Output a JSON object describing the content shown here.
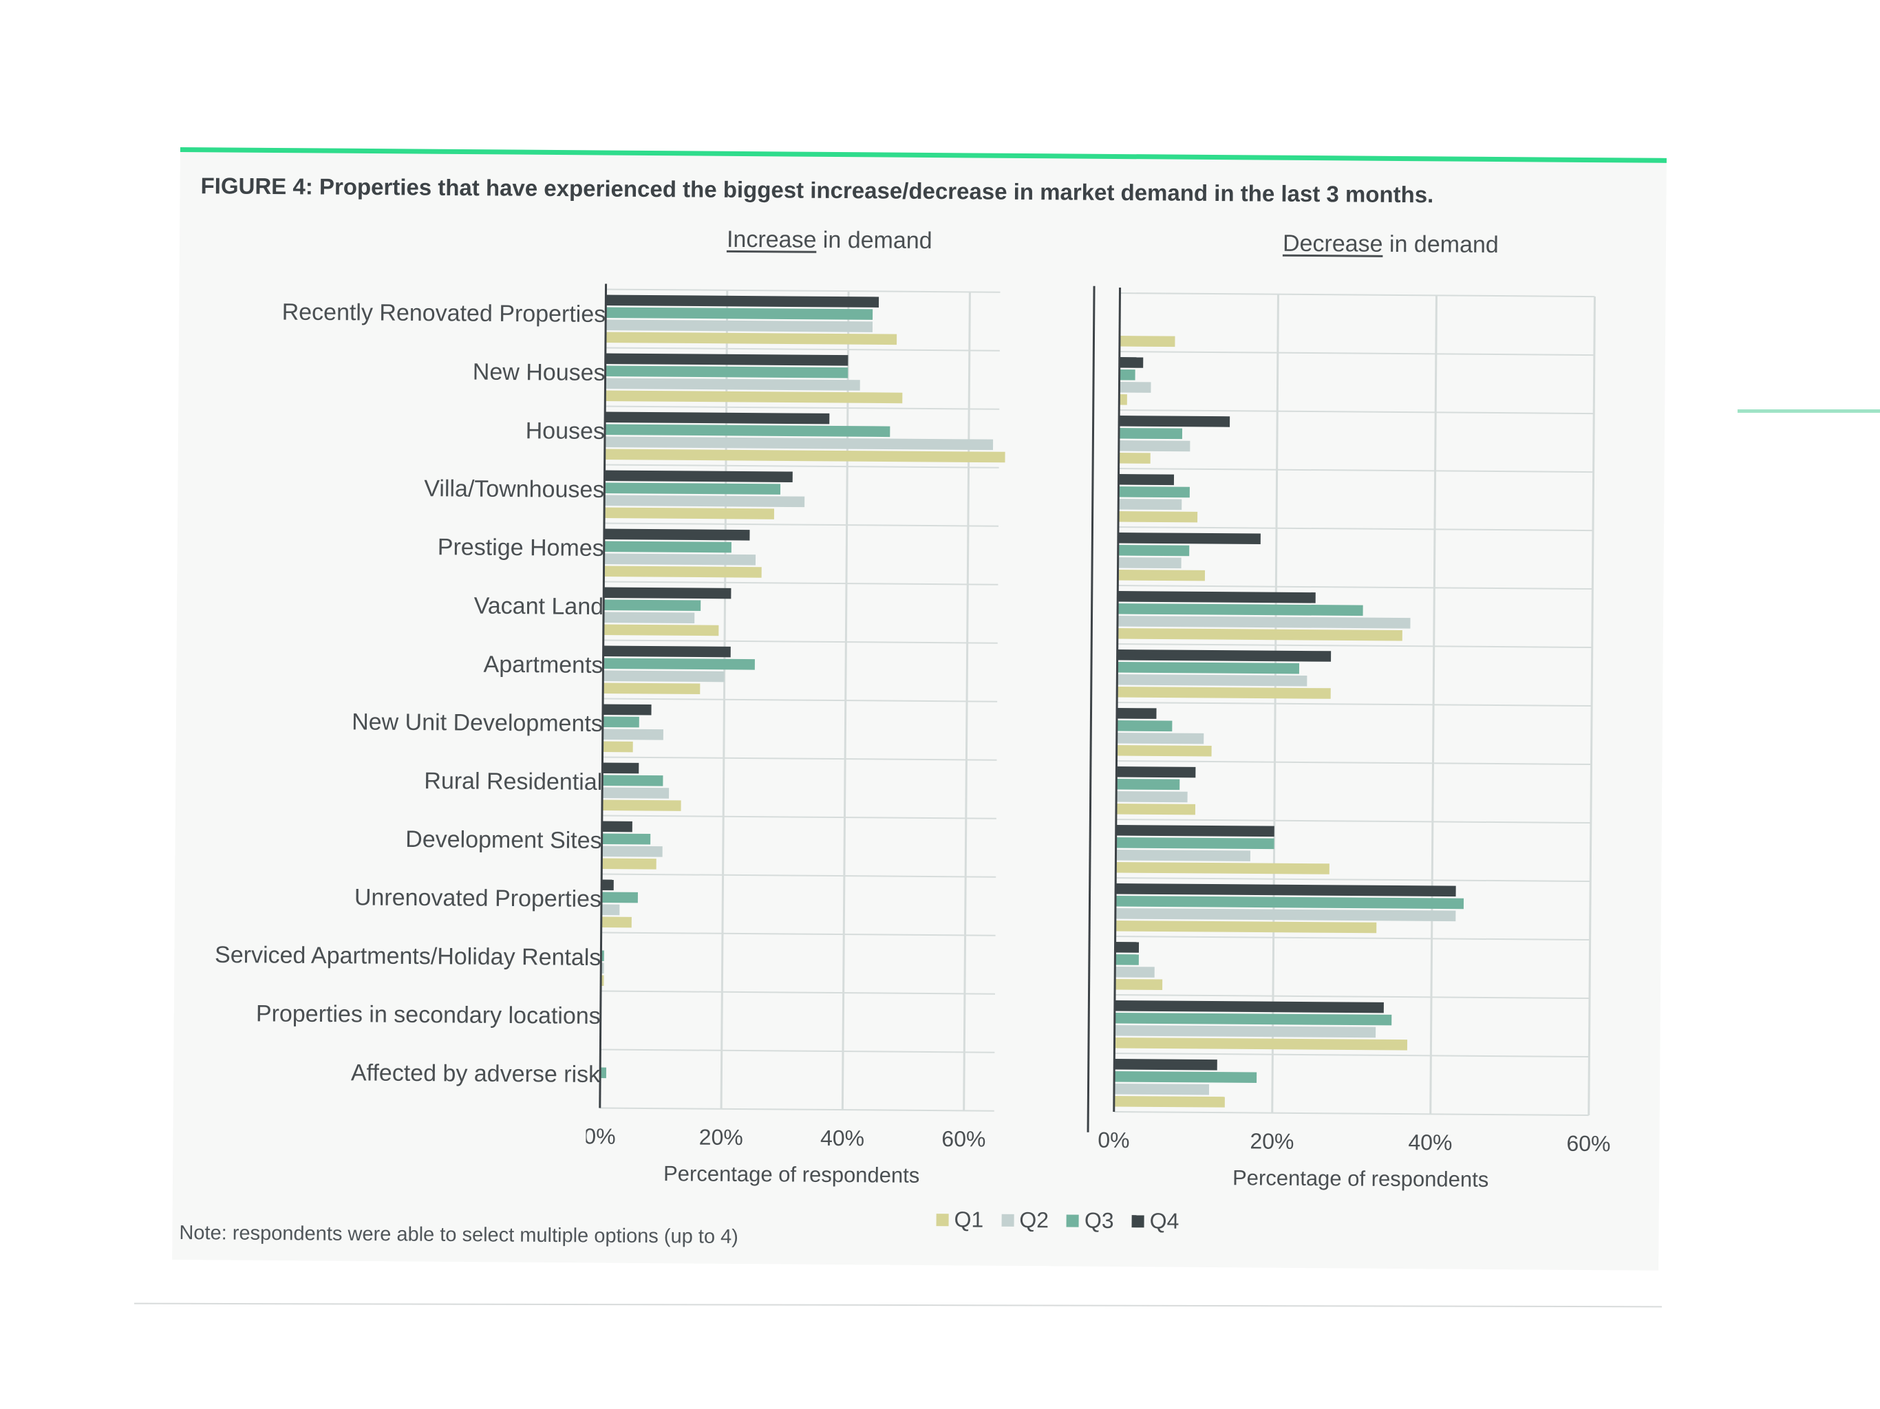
{
  "figure": {
    "title": "FIGURE 4: Properties that have experienced the biggest increase/decrease in market demand in the last 3 months.",
    "note": "Note: respondents were able to select multiple options (up to 4)"
  },
  "colors": {
    "Q1": "#d6d496",
    "Q2": "#c3d1d0",
    "Q3": "#72b29e",
    "Q4": "#3d4649",
    "grid": "#d6dcdb",
    "accent": "#2fdc8c"
  },
  "legend": [
    {
      "label": "Q1",
      "color": "#d6d496"
    },
    {
      "label": "Q2",
      "color": "#c3d1d0"
    },
    {
      "label": "Q3",
      "color": "#72b29e"
    },
    {
      "label": "Q4",
      "color": "#3d4649"
    }
  ],
  "chart_data": [
    {
      "type": "bar",
      "orientation": "horizontal",
      "title_underlined": "Increase",
      "title_rest": " in demand",
      "xlabel": "Percentage of respondents",
      "xlim": [
        0,
        65
      ],
      "ticks": [
        "0%",
        "20%",
        "40%",
        "60%"
      ],
      "tick_values": [
        0,
        20,
        40,
        60
      ],
      "grid": true,
      "categories": [
        "Recently Renovated Properties",
        "New Houses",
        "Houses",
        "Villa/Townhouses",
        "Prestige Homes",
        "Vacant Land",
        "Apartments",
        "New Unit Developments",
        "Rural Residential",
        "Development Sites",
        "Unrenovated Properties",
        "Serviced Apartments/Holiday Rentals",
        "Properties in secondary locations",
        "Affected by adverse risk"
      ],
      "series": [
        {
          "name": "Q4",
          "values": [
            45,
            40,
            37,
            31,
            24,
            21,
            21,
            8,
            6,
            5,
            2,
            0,
            0,
            0
          ]
        },
        {
          "name": "Q3",
          "values": [
            44,
            40,
            47,
            29,
            21,
            16,
            25,
            6,
            10,
            8,
            6,
            0.5,
            0,
            1
          ]
        },
        {
          "name": "Q2",
          "values": [
            44,
            42,
            64,
            33,
            25,
            15,
            20,
            10,
            11,
            10,
            3,
            0.5,
            0,
            0
          ]
        },
        {
          "name": "Q1",
          "values": [
            48,
            49,
            66,
            28,
            26,
            19,
            16,
            5,
            13,
            9,
            5,
            0.5,
            0,
            0
          ]
        }
      ]
    },
    {
      "type": "bar",
      "orientation": "horizontal",
      "title_underlined": "Decrease",
      "title_rest": " in demand",
      "xlabel": "Percentage of respondents",
      "xlim": [
        0,
        60
      ],
      "ticks": [
        "0%",
        "20%",
        "40%",
        "60%"
      ],
      "tick_values": [
        0,
        20,
        40,
        60
      ],
      "grid": true,
      "categories": [
        "Recently Renovated Properties",
        "New Houses",
        "Houses",
        "Villa/Townhouses",
        "Prestige Homes",
        "Vacant Land",
        "Apartments",
        "New Unit Developments",
        "Rural Residential",
        "Development Sites",
        "Unrenovated Properties",
        "Serviced Apartments/Holiday Rentals",
        "Properties in secondary locations",
        "Affected by adverse risk"
      ],
      "series": [
        {
          "name": "Q4",
          "values": [
            0,
            3,
            14,
            7,
            18,
            25,
            27,
            5,
            10,
            20,
            43,
            3,
            34,
            13
          ]
        },
        {
          "name": "Q3",
          "values": [
            0,
            2,
            8,
            9,
            9,
            31,
            23,
            7,
            8,
            20,
            44,
            3,
            35,
            18
          ]
        },
        {
          "name": "Q2",
          "values": [
            0,
            4,
            9,
            8,
            8,
            37,
            24,
            11,
            9,
            17,
            43,
            5,
            33,
            12
          ]
        },
        {
          "name": "Q1",
          "values": [
            7,
            1,
            4,
            10,
            11,
            36,
            27,
            12,
            10,
            27,
            33,
            6,
            37,
            14
          ]
        }
      ]
    }
  ]
}
